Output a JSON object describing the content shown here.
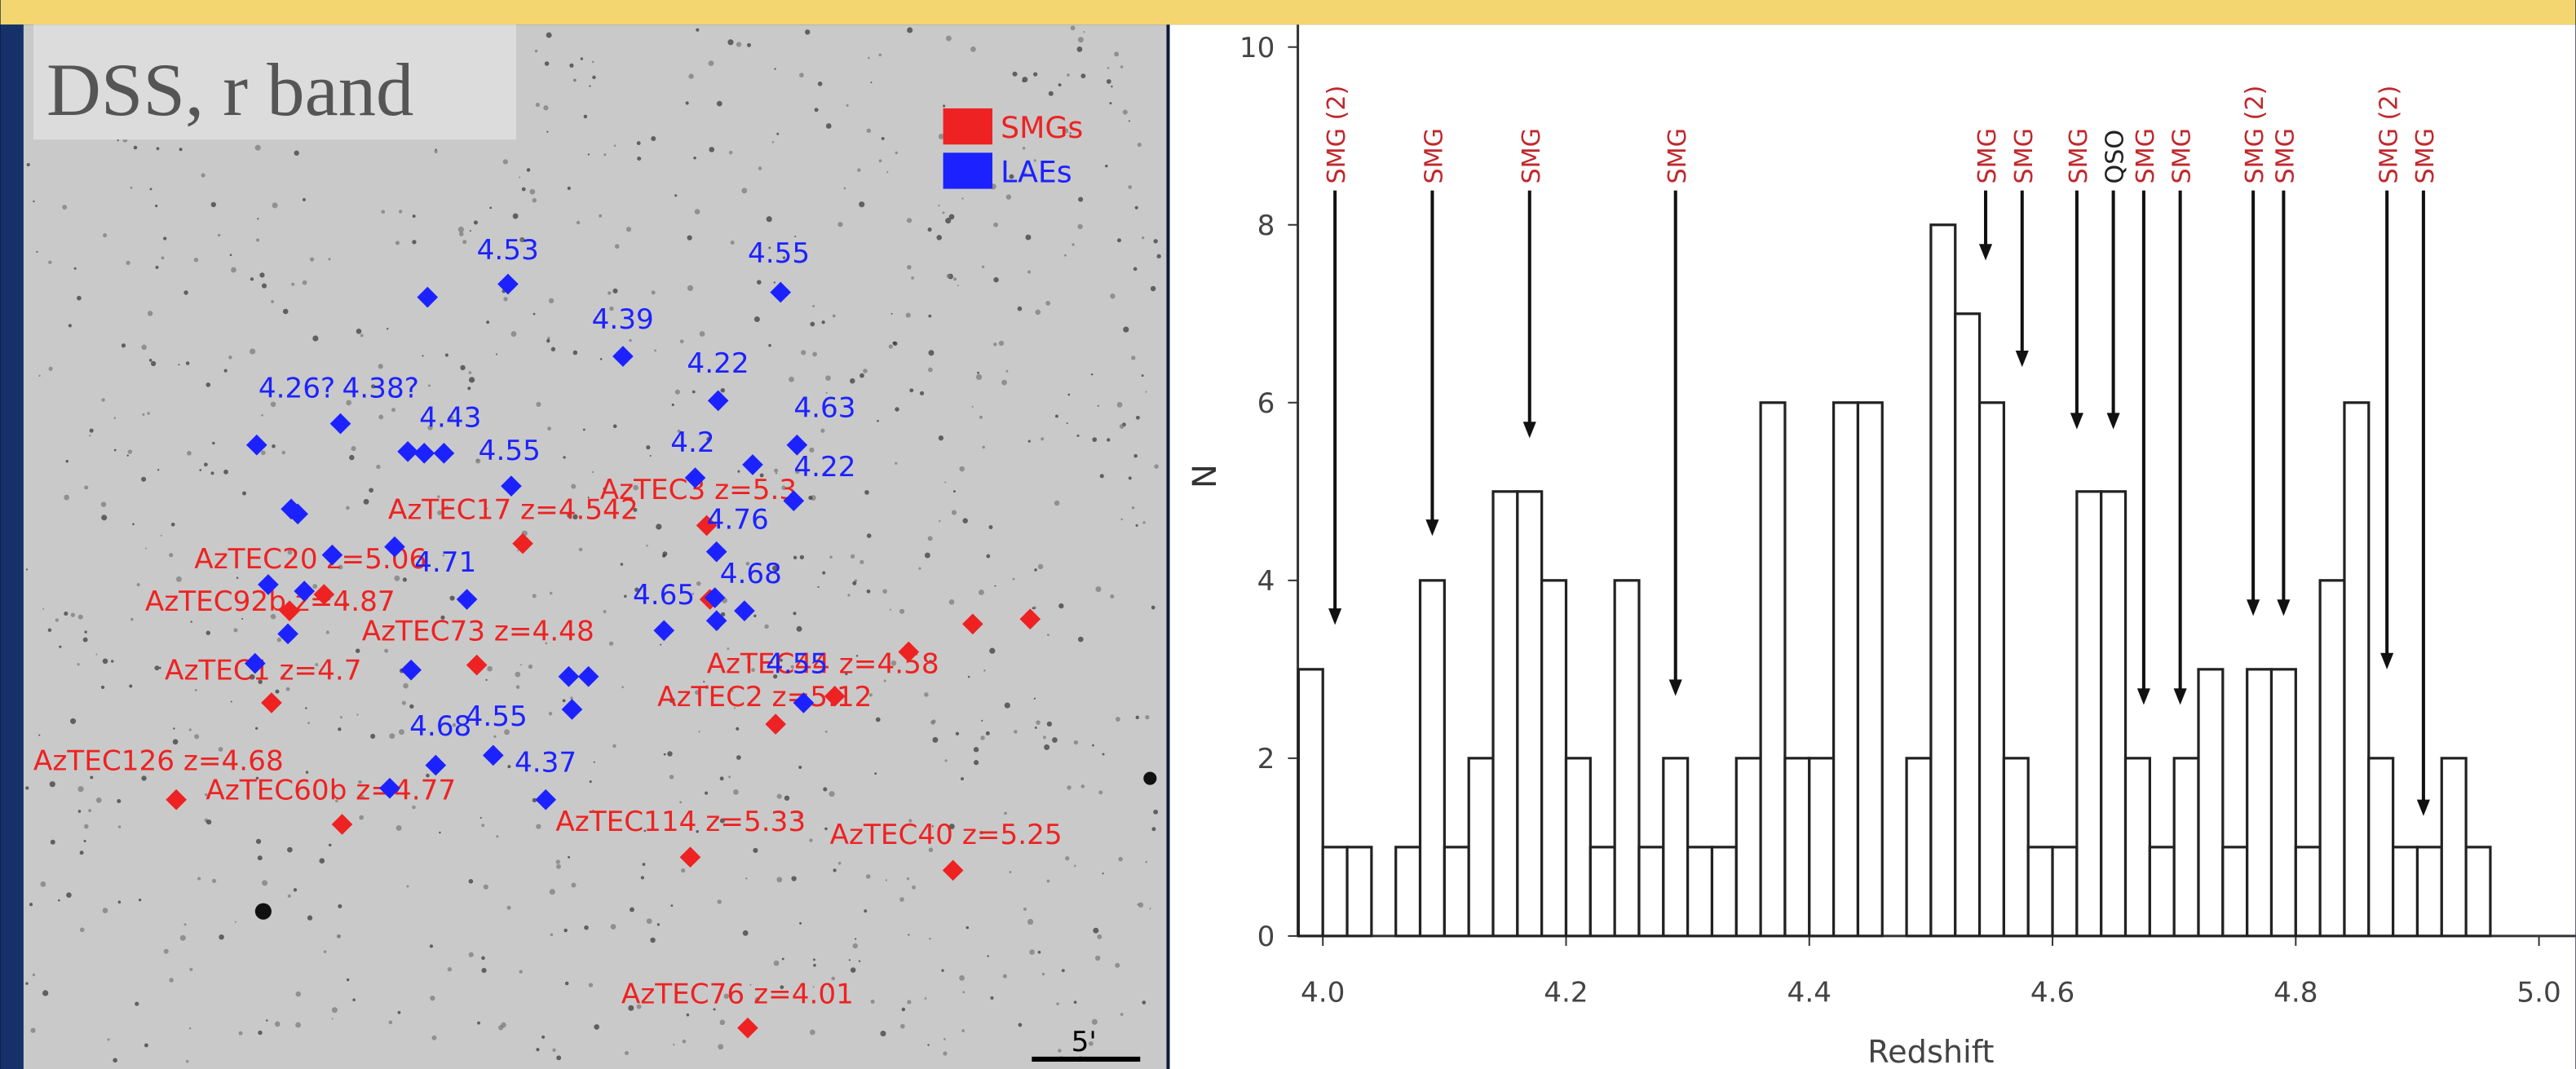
{
  "sky_map": {
    "title": "DSS, r band",
    "legend": [
      {
        "name": "SMGs",
        "color": "#ee2222"
      },
      {
        "name": "LAEs",
        "color": "#1c22ff"
      }
    ],
    "smg_labels": [
      "AzTEC17 z=4.542",
      "AzTEC20 z=5.06",
      "AzTEC92b z=4.87",
      "AzTEC73 z=4.48",
      "AzTEC1 z=4.7",
      "AzTEC126 z=4.68",
      "AzTEC60b z=4.77",
      "AzTEC114 z=5.33",
      "AzTEC40 z=5.25",
      "AzTEC76 z=4.01",
      "AzTEC3 z=5.3",
      "AzTEC44 z=4.58",
      "AzTEC2 z=5.12"
    ],
    "lae_labels": [
      "4.53",
      "4.55",
      "4.39",
      "4.22",
      "4.26?",
      "4.38?",
      "4.43",
      "4.55",
      "4.63",
      "4.22",
      "4.76",
      "4.71",
      "4.65",
      "4.68",
      "4.55",
      "4.68",
      "4.55",
      "4.37",
      "4.2"
    ],
    "scale_bar": "5'"
  },
  "chart_data": {
    "type": "histogram",
    "xlabel": "Redshift",
    "ylabel": "N",
    "bins": [
      3.98,
      4.0,
      4.02,
      4.04,
      4.06,
      4.08,
      4.1,
      4.12,
      4.14,
      4.16,
      4.18,
      4.2,
      4.22,
      4.24,
      4.26,
      4.28,
      4.3,
      4.32,
      4.34,
      4.36,
      4.38,
      4.4,
      4.42,
      4.44,
      4.46,
      4.48,
      4.5,
      4.52,
      4.54,
      4.56,
      4.58,
      4.6,
      4.62,
      4.64,
      4.66,
      4.68,
      4.7,
      4.72,
      4.74,
      4.76,
      4.78,
      4.8,
      4.82,
      4.84,
      4.86,
      4.88,
      4.9,
      4.92,
      4.94,
      4.96
    ],
    "values": [
      3,
      1,
      1,
      0,
      1,
      4,
      1,
      2,
      5,
      5,
      4,
      2,
      1,
      4,
      1,
      2,
      1,
      1,
      2,
      6,
      2,
      2,
      6,
      6,
      0,
      2,
      8,
      7,
      6,
      2,
      1,
      1,
      5,
      5,
      2,
      1,
      2,
      3,
      1,
      3,
      3,
      1,
      4,
      6,
      2,
      1,
      1,
      2,
      1
    ],
    "color": "#ffffff",
    "edge_color": "#222222",
    "xlim": [
      3.97,
      5.03
    ],
    "ylim": [
      0,
      10.4
    ],
    "xticks": [
      {
        "value": 4,
        "label": "4.0"
      },
      4.2,
      4.4,
      4.6,
      4.8,
      {
        "value": 5,
        "label": "5.0"
      }
    ],
    "yticks": [
      0,
      2,
      4,
      6,
      8,
      10
    ],
    "annotations": [
      {
        "text": "SMG (2)",
        "x": 4.01,
        "y": 3.5,
        "color": "#c0282d"
      },
      {
        "text": "SMG",
        "x": 4.09,
        "y": 4.5,
        "color": "#c0282d"
      },
      {
        "text": "SMG",
        "x": 4.17,
        "y": 5.6,
        "color": "#c0282d"
      },
      {
        "text": "SMG",
        "x": 4.29,
        "y": 2.7,
        "color": "#c0282d"
      },
      {
        "text": "SMG",
        "x": 4.545,
        "y": 7.6,
        "color": "#c0282d"
      },
      {
        "text": "SMG",
        "x": 4.575,
        "y": 6.4,
        "color": "#c0282d"
      },
      {
        "text": "SMG",
        "x": 4.62,
        "y": 5.7,
        "color": "#c0282d"
      },
      {
        "text": "QSO",
        "x": 4.65,
        "y": 5.7,
        "color": "#222222"
      },
      {
        "text": "SMG",
        "x": 4.675,
        "y": 2.6,
        "color": "#c0282d"
      },
      {
        "text": "SMG",
        "x": 4.705,
        "y": 2.6,
        "color": "#c0282d"
      },
      {
        "text": "SMG (2)",
        "x": 4.765,
        "y": 3.6,
        "color": "#c0282d"
      },
      {
        "text": "SMG",
        "x": 4.79,
        "y": 3.6,
        "color": "#c0282d"
      },
      {
        "text": "SMG (2)",
        "x": 4.875,
        "y": 3.0,
        "color": "#c0282d"
      },
      {
        "text": "SMG",
        "x": 4.905,
        "y": 1.35,
        "color": "#c0282d"
      }
    ]
  }
}
